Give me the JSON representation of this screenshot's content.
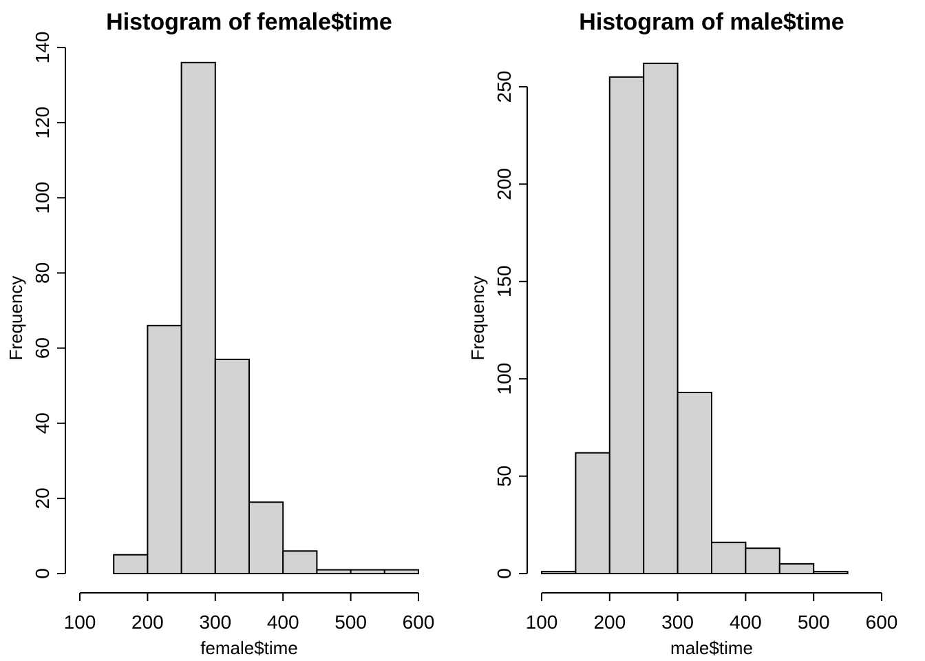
{
  "chart_data": [
    {
      "type": "bar",
      "title": "Histogram of female$time",
      "xlabel": "female$time",
      "ylabel": "Frequency",
      "bins": [
        [
          150,
          200
        ],
        [
          200,
          250
        ],
        [
          250,
          300
        ],
        [
          300,
          350
        ],
        [
          350,
          400
        ],
        [
          400,
          450
        ],
        [
          450,
          500
        ],
        [
          500,
          550
        ],
        [
          550,
          600
        ]
      ],
      "values": [
        5,
        66,
        136,
        57,
        19,
        6,
        1,
        1,
        1
      ],
      "xlim": [
        100,
        600
      ],
      "ylim": [
        0,
        140
      ],
      "xticks": [
        100,
        200,
        300,
        400,
        500,
        600
      ],
      "yticks": [
        0,
        20,
        40,
        60,
        80,
        100,
        120,
        140
      ],
      "xtick_labels": [
        "100",
        "200",
        "300",
        "400",
        "500",
        "600"
      ],
      "ytick_labels": [
        "0",
        "20",
        "40",
        "60",
        "80",
        "100",
        "120",
        "140"
      ],
      "bar_color": "#d3d3d3"
    },
    {
      "type": "bar",
      "title": "Histogram of male$time",
      "xlabel": "male$time",
      "ylabel": "Frequency",
      "bins": [
        [
          100,
          150
        ],
        [
          150,
          200
        ],
        [
          200,
          250
        ],
        [
          250,
          300
        ],
        [
          300,
          350
        ],
        [
          350,
          400
        ],
        [
          400,
          450
        ],
        [
          450,
          500
        ],
        [
          500,
          550
        ]
      ],
      "values": [
        1,
        62,
        255,
        262,
        93,
        16,
        13,
        5,
        1
      ],
      "xlim": [
        100,
        600
      ],
      "ylim": [
        0,
        250
      ],
      "xticks": [
        100,
        200,
        300,
        400,
        500,
        600
      ],
      "yticks": [
        0,
        50,
        100,
        150,
        200,
        250
      ],
      "xtick_labels": [
        "100",
        "200",
        "300",
        "400",
        "500",
        "600"
      ],
      "ytick_labels": [
        "0",
        "50",
        "100",
        "150",
        "200",
        "250"
      ],
      "bar_color": "#d3d3d3"
    }
  ]
}
